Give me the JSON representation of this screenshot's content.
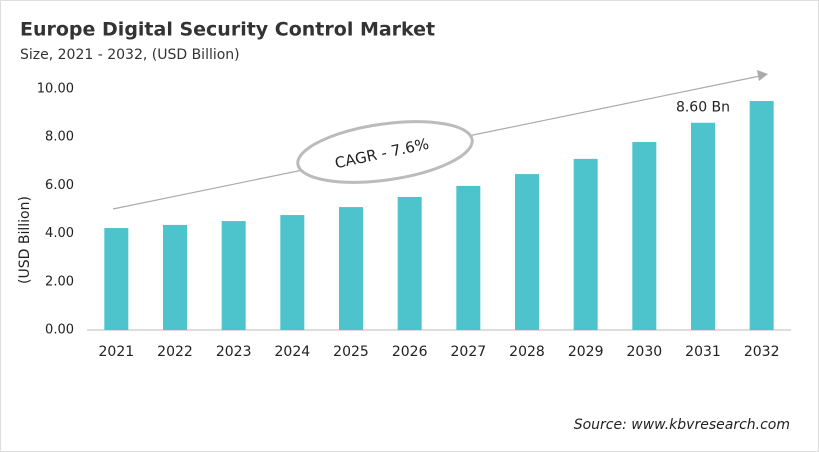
{
  "chart_data": {
    "type": "bar",
    "title": "Europe Digital Security Control Market",
    "subtitle": "Size, 2021 - 2032, (USD Billion)",
    "y_label": "(USD Billion)",
    "annotation": "CAGR - 7.6%",
    "source": "Source: www.kbvresearch.com",
    "categories": [
      "2021",
      "2022",
      "2023",
      "2024",
      "2025",
      "2026",
      "2027",
      "2028",
      "2029",
      "2030",
      "2031",
      "2032"
    ],
    "values": [
      4.23,
      4.36,
      4.52,
      4.77,
      5.1,
      5.52,
      5.98,
      6.47,
      7.1,
      7.8,
      8.6,
      9.5
    ],
    "value_labels": [
      null,
      null,
      null,
      null,
      null,
      null,
      null,
      null,
      null,
      null,
      "8.60 Bn",
      null
    ],
    "color": "#4dc3cb",
    "ylim": [
      0,
      10
    ],
    "yticks": [
      {
        "value": 0,
        "label": "0.00"
      },
      {
        "value": 2,
        "label": "2.00"
      },
      {
        "value": 4,
        "label": "4.00"
      },
      {
        "value": 6,
        "label": "6.00"
      },
      {
        "value": 8,
        "label": "8.00"
      },
      {
        "value": 10,
        "label": "10.00"
      }
    ],
    "grid": false
  }
}
